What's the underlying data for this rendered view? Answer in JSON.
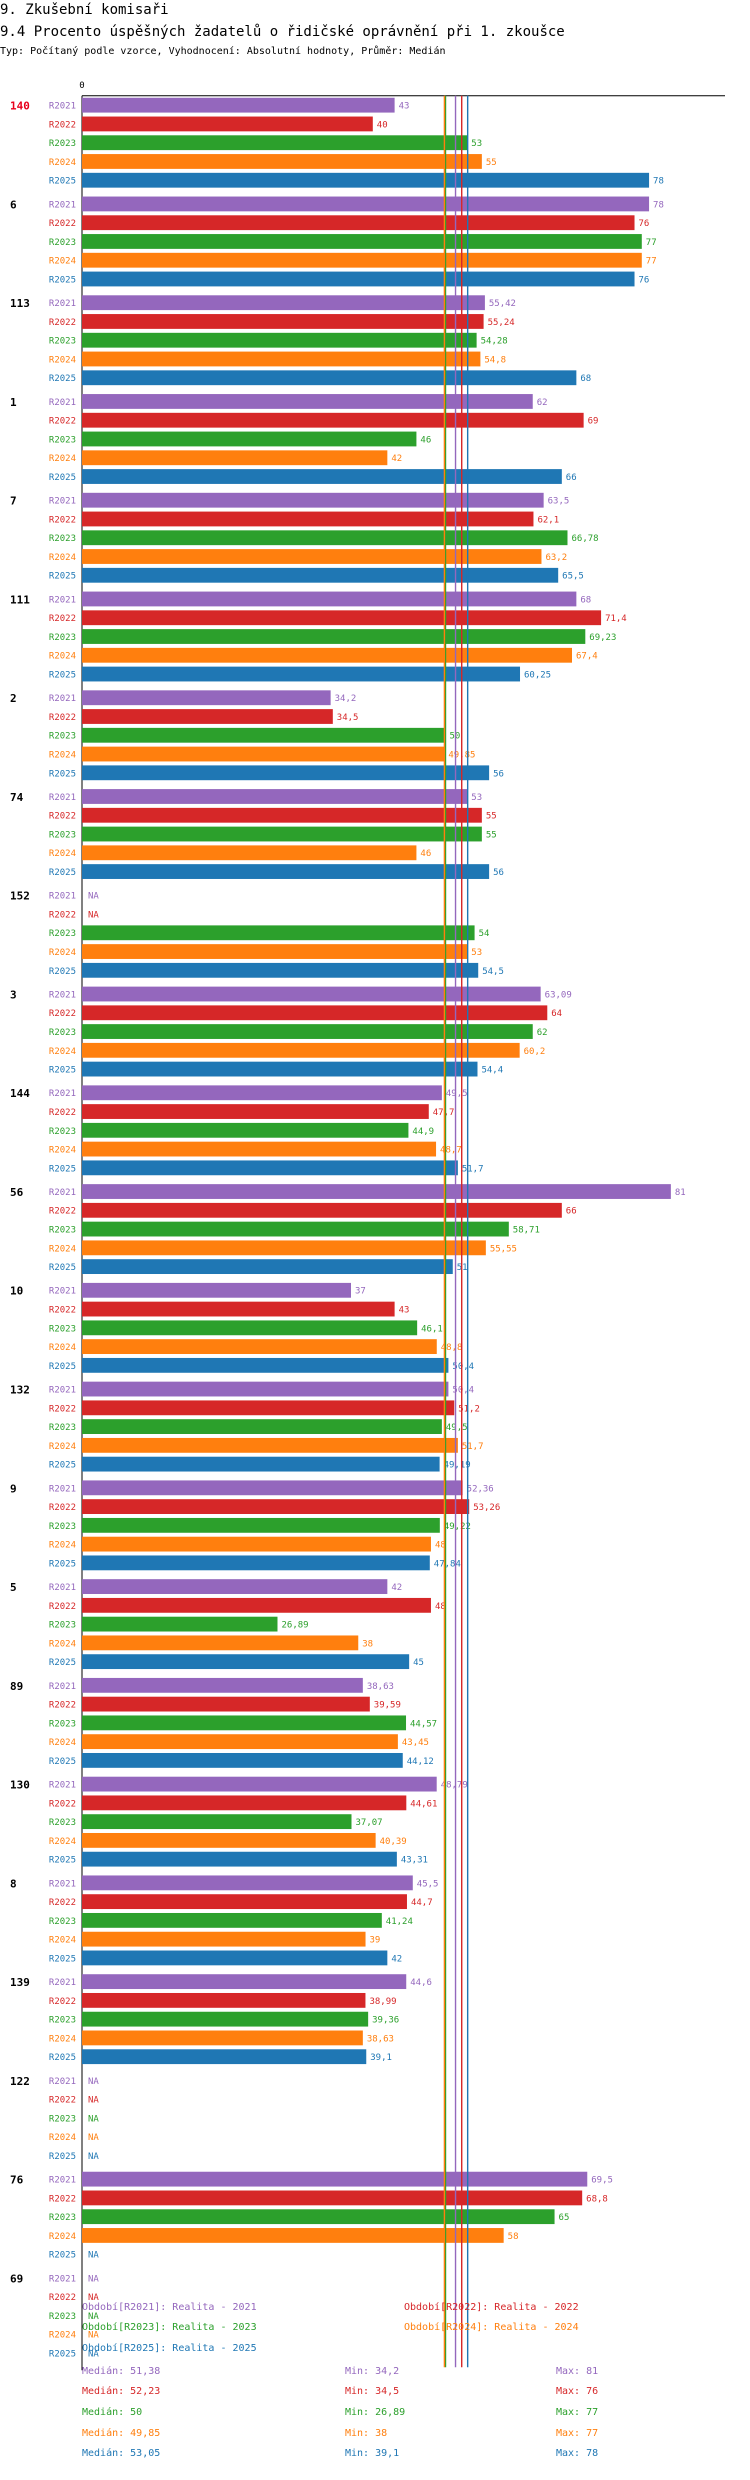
{
  "header": {
    "section": "9. Zkušební komisaři",
    "title": "9.4 Procento úspěšných žadatelů o řidičské oprávnění při 1. zkoušce",
    "subtitle": "Typ: Počítaný podle vzorce, Vyhodnocení: Absolutní hodnoty, Průměr: Medián"
  },
  "colors": {
    "R2021": "#9467bd",
    "R2022": "#d62728",
    "R2023": "#2ca02c",
    "R2024": "#ff7f0e",
    "R2025": "#1f77b4",
    "highlight": "#e8001c"
  },
  "chart_data": {
    "type": "bar",
    "orientation": "horizontal",
    "title": "9.4 Procento úspěšných žadatelů o řidičské oprávnění při 1. zkoušce",
    "axis_zero_label": "0",
    "xlim": [
      0,
      81
    ],
    "series_names": [
      "R2021",
      "R2022",
      "R2023",
      "R2024",
      "R2025"
    ],
    "na_label": "NA",
    "groups": [
      {
        "label": "140",
        "highlight": true,
        "values": [
          "43",
          "40",
          "53",
          "55",
          "78"
        ]
      },
      {
        "label": "6",
        "values": [
          "78",
          "76",
          "77",
          "77",
          "76"
        ]
      },
      {
        "label": "113",
        "values": [
          "55,42",
          "55,24",
          "54,28",
          "54,8",
          "68"
        ]
      },
      {
        "label": "1",
        "values": [
          "62",
          "69",
          "46",
          "42",
          "66"
        ]
      },
      {
        "label": "7",
        "values": [
          "63,5",
          "62,1",
          "66,78",
          "63,2",
          "65,5"
        ]
      },
      {
        "label": "111",
        "values": [
          "68",
          "71,4",
          "69,23",
          "67,4",
          "60,25"
        ]
      },
      {
        "label": "2",
        "values": [
          "34,2",
          "34,5",
          "50",
          "49,85",
          "56"
        ]
      },
      {
        "label": "74",
        "values": [
          "53",
          "55",
          "55",
          "46",
          "56"
        ]
      },
      {
        "label": "152",
        "values": [
          null,
          null,
          "54",
          "53",
          "54,5"
        ]
      },
      {
        "label": "3",
        "values": [
          "63,09",
          "64",
          "62",
          "60,2",
          "54,4"
        ]
      },
      {
        "label": "144",
        "values": [
          "49,5",
          "47,7",
          "44,9",
          "48,7",
          "51,7"
        ]
      },
      {
        "label": "56",
        "values": [
          "81",
          "66",
          "58,71",
          "55,55",
          "51"
        ]
      },
      {
        "label": "10",
        "values": [
          "37",
          "43",
          "46,1",
          "48,8",
          "50,4"
        ]
      },
      {
        "label": "132",
        "values": [
          "50,4",
          "51,2",
          "49,5",
          "51,7",
          "49,19"
        ]
      },
      {
        "label": "9",
        "values": [
          "52,36",
          "53,26",
          "49,22",
          "48",
          "47,84"
        ]
      },
      {
        "label": "5",
        "values": [
          "42",
          "48",
          "26,89",
          "38",
          "45"
        ]
      },
      {
        "label": "89",
        "values": [
          "38,63",
          "39,59",
          "44,57",
          "43,45",
          "44,12"
        ]
      },
      {
        "label": "130",
        "values": [
          "48,79",
          "44,61",
          "37,07",
          "40,39",
          "43,31"
        ]
      },
      {
        "label": "8",
        "values": [
          "45,5",
          "44,7",
          "41,24",
          "39",
          "42"
        ]
      },
      {
        "label": "139",
        "values": [
          "44,6",
          "38,99",
          "39,36",
          "38,63",
          "39,1"
        ]
      },
      {
        "label": "122",
        "values": [
          null,
          null,
          null,
          null,
          null
        ]
      },
      {
        "label": "76",
        "values": [
          "69,5",
          "68,8",
          "65",
          "58",
          null
        ]
      },
      {
        "label": "69",
        "values": [
          null,
          null,
          null,
          null,
          null
        ]
      }
    ],
    "medians": {
      "R2021": 51.38,
      "R2022": 52.23,
      "R2023": 50,
      "R2024": 49.85,
      "R2025": 53.05
    }
  },
  "legend": [
    {
      "key": "R2021",
      "text": "Období[R2021]: Realita - 2021"
    },
    {
      "key": "R2022",
      "text": "Období[R2022]: Realita - 2022"
    },
    {
      "key": "R2023",
      "text": "Období[R2023]: Realita - 2023"
    },
    {
      "key": "R2024",
      "text": "Období[R2024]: Realita - 2024"
    },
    {
      "key": "R2025",
      "text": "Období[R2025]: Realita - 2025"
    }
  ],
  "stats": [
    {
      "key": "R2021",
      "median": "Medián: 51,38",
      "min": "Min: 34,2",
      "max": "Max: 81"
    },
    {
      "key": "R2022",
      "median": "Medián: 52,23",
      "min": "Min: 34,5",
      "max": "Max: 76"
    },
    {
      "key": "R2023",
      "median": "Medián: 50",
      "min": "Min: 26,89",
      "max": "Max: 77"
    },
    {
      "key": "R2024",
      "median": "Medián: 49,85",
      "min": "Min: 38",
      "max": "Max: 77"
    },
    {
      "key": "R2025",
      "median": "Medián: 53,05",
      "min": "Min: 39,1",
      "max": "Max: 78"
    }
  ]
}
